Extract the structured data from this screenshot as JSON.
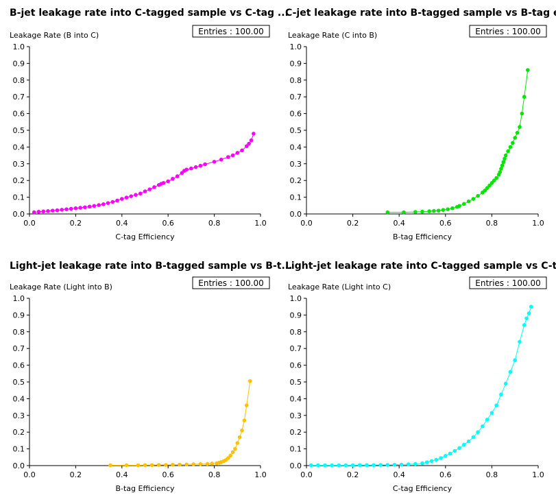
{
  "chart_data": [
    {
      "type": "line",
      "title": "B-jet leakage rate into C-tagged sample vs C-tag ...",
      "xlabel": "C-tag Efficiency",
      "ylabel": "Leakage Rate (B into C)",
      "entries": "Entries : 100.00",
      "color": "#ff00ff",
      "xlim": [
        0.0,
        1.0
      ],
      "ylim": [
        0.0,
        1.0
      ],
      "x_ticks": [
        "0.0",
        "0.2",
        "0.4",
        "0.6",
        "0.8",
        "1.0"
      ],
      "y_ticks": [
        "0.0",
        "0.1",
        "0.2",
        "0.3",
        "0.4",
        "0.5",
        "0.6",
        "0.7",
        "0.8",
        "0.9",
        "1.0"
      ],
      "series": [
        {
          "x": [
            0.02,
            0.04,
            0.06,
            0.08,
            0.1,
            0.12,
            0.14,
            0.16,
            0.18,
            0.2,
            0.22,
            0.24,
            0.26,
            0.28,
            0.3,
            0.32,
            0.34,
            0.36,
            0.38,
            0.4,
            0.42,
            0.44,
            0.46,
            0.48,
            0.5,
            0.52,
            0.54,
            0.56,
            0.57,
            0.58,
            0.6,
            0.62,
            0.64,
            0.66,
            0.67,
            0.68,
            0.7,
            0.72,
            0.74,
            0.76,
            0.8,
            0.83,
            0.86,
            0.88,
            0.9,
            0.92,
            0.94,
            0.95,
            0.96,
            0.97
          ],
          "y": [
            0.01,
            0.013,
            0.015,
            0.017,
            0.02,
            0.022,
            0.025,
            0.028,
            0.031,
            0.034,
            0.037,
            0.04,
            0.044,
            0.048,
            0.053,
            0.058,
            0.065,
            0.072,
            0.08,
            0.09,
            0.098,
            0.106,
            0.114,
            0.122,
            0.135,
            0.147,
            0.16,
            0.173,
            0.18,
            0.185,
            0.195,
            0.21,
            0.225,
            0.245,
            0.258,
            0.265,
            0.272,
            0.28,
            0.288,
            0.297,
            0.312,
            0.325,
            0.34,
            0.35,
            0.365,
            0.38,
            0.405,
            0.42,
            0.44,
            0.48
          ]
        }
      ]
    },
    {
      "type": "line",
      "title": "C-jet leakage rate into B-tagged sample vs B-tag e...",
      "xlabel": "B-tag Efficiency",
      "ylabel": "Leakage Rate (C into B)",
      "entries": "Entries : 100.00",
      "color": "#00e600",
      "xlim": [
        0.0,
        1.0
      ],
      "ylim": [
        0.0,
        1.0
      ],
      "x_ticks": [
        "0.0",
        "0.2",
        "0.4",
        "0.6",
        "0.8",
        "1.0"
      ],
      "y_ticks": [
        "0.0",
        "0.1",
        "0.2",
        "0.3",
        "0.4",
        "0.5",
        "0.6",
        "0.7",
        "0.8",
        "0.9",
        "1.0"
      ],
      "series": [
        {
          "x": [
            0.35,
            0.42,
            0.47,
            0.5,
            0.53,
            0.55,
            0.57,
            0.59,
            0.61,
            0.63,
            0.65,
            0.66,
            0.68,
            0.7,
            0.72,
            0.74,
            0.76,
            0.77,
            0.78,
            0.79,
            0.8,
            0.81,
            0.82,
            0.83,
            0.835,
            0.84,
            0.845,
            0.85,
            0.855,
            0.86,
            0.87,
            0.88,
            0.89,
            0.9,
            0.91,
            0.92,
            0.93,
            0.94,
            0.955
          ],
          "y": [
            0.01,
            0.01,
            0.012,
            0.014,
            0.016,
            0.018,
            0.02,
            0.024,
            0.028,
            0.034,
            0.042,
            0.048,
            0.06,
            0.075,
            0.09,
            0.108,
            0.128,
            0.14,
            0.155,
            0.17,
            0.185,
            0.2,
            0.215,
            0.235,
            0.25,
            0.27,
            0.29,
            0.31,
            0.33,
            0.35,
            0.375,
            0.4,
            0.425,
            0.455,
            0.485,
            0.52,
            0.6,
            0.7,
            0.86
          ]
        }
      ]
    },
    {
      "type": "line",
      "title": "Light-jet leakage rate into B-tagged sample vs B-t...",
      "xlabel": "B-tag Efficiency",
      "ylabel": "Leakage Rate (Light into B)",
      "entries": "Entries : 100.00",
      "color": "#ffc000",
      "xlim": [
        0.0,
        1.0
      ],
      "ylim": [
        0.0,
        1.0
      ],
      "x_ticks": [
        "0.0",
        "0.2",
        "0.4",
        "0.6",
        "0.8",
        "1.0"
      ],
      "y_ticks": [
        "0.0",
        "0.1",
        "0.2",
        "0.3",
        "0.4",
        "0.5",
        "0.6",
        "0.7",
        "0.8",
        "0.9",
        "1.0"
      ],
      "series": [
        {
          "x": [
            0.35,
            0.42,
            0.47,
            0.5,
            0.53,
            0.56,
            0.59,
            0.62,
            0.65,
            0.68,
            0.71,
            0.74,
            0.77,
            0.79,
            0.81,
            0.82,
            0.83,
            0.84,
            0.85,
            0.86,
            0.87,
            0.88,
            0.89,
            0.9,
            0.91,
            0.92,
            0.93,
            0.94,
            0.955
          ],
          "y": [
            0.002,
            0.002,
            0.002,
            0.003,
            0.003,
            0.004,
            0.004,
            0.005,
            0.006,
            0.007,
            0.008,
            0.009,
            0.01,
            0.012,
            0.014,
            0.017,
            0.021,
            0.026,
            0.033,
            0.045,
            0.06,
            0.08,
            0.1,
            0.135,
            0.17,
            0.21,
            0.27,
            0.36,
            0.505
          ]
        }
      ]
    },
    {
      "type": "line",
      "title": "Light-jet leakage rate into C-tagged sample vs C-t...",
      "xlabel": "C-tag Efficiency",
      "ylabel": "Leakage Rate (Light into C)",
      "entries": "Entries : 100.00",
      "color": "#00ffff",
      "xlim": [
        0.0,
        1.0
      ],
      "ylim": [
        0.0,
        1.0
      ],
      "x_ticks": [
        "0.0",
        "0.2",
        "0.4",
        "0.6",
        "0.8",
        "1.0"
      ],
      "y_ticks": [
        "0.0",
        "0.1",
        "0.2",
        "0.3",
        "0.4",
        "0.5",
        "0.6",
        "0.7",
        "0.8",
        "0.9",
        "1.0"
      ],
      "series": [
        {
          "x": [
            0.02,
            0.05,
            0.08,
            0.11,
            0.14,
            0.17,
            0.2,
            0.23,
            0.26,
            0.29,
            0.32,
            0.35,
            0.38,
            0.41,
            0.44,
            0.47,
            0.5,
            0.52,
            0.54,
            0.56,
            0.58,
            0.6,
            0.62,
            0.64,
            0.66,
            0.68,
            0.7,
            0.72,
            0.74,
            0.76,
            0.78,
            0.8,
            0.82,
            0.84,
            0.86,
            0.88,
            0.9,
            0.92,
            0.94,
            0.95,
            0.96,
            0.97
          ],
          "y": [
            0.002,
            0.002,
            0.002,
            0.002,
            0.002,
            0.002,
            0.002,
            0.003,
            0.003,
            0.003,
            0.004,
            0.004,
            0.005,
            0.006,
            0.008,
            0.01,
            0.014,
            0.02,
            0.027,
            0.035,
            0.045,
            0.058,
            0.072,
            0.088,
            0.105,
            0.125,
            0.145,
            0.17,
            0.2,
            0.235,
            0.275,
            0.315,
            0.36,
            0.425,
            0.49,
            0.56,
            0.63,
            0.74,
            0.84,
            0.88,
            0.91,
            0.95
          ]
        }
      ]
    }
  ]
}
